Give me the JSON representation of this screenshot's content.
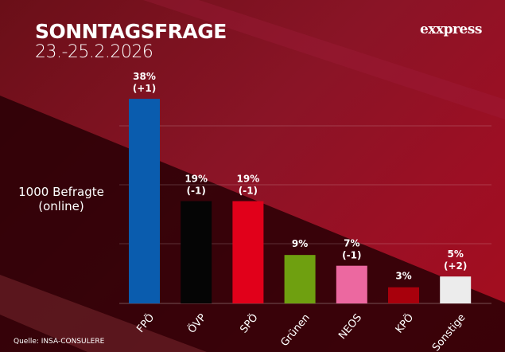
{
  "header": {
    "title": "SONNTAGSFRAGE",
    "date": "23.-25.2.2026",
    "logo": "exxpress"
  },
  "note": {
    "line1": "1000 Befragte",
    "line2": "(online)"
  },
  "source": "Quelle:  INSA-CONSULERE",
  "chart_data": {
    "type": "bar",
    "categories": [
      "FPÖ",
      "ÖVP",
      "SPÖ",
      "Grünen",
      "NEOS",
      "KPÖ",
      "Sonstige"
    ],
    "values": [
      38,
      19,
      19,
      9,
      7,
      3,
      5
    ],
    "value_labels": [
      "38%",
      "19%",
      "19%",
      "9%",
      "7%",
      "3%",
      "5%"
    ],
    "change_labels": [
      "(+1)",
      "(-1)",
      "(-1)",
      "",
      "(-1)",
      "",
      "(+2)"
    ],
    "colors": [
      "#0a5cae",
      "#050505",
      "#e1001a",
      "#6fa010",
      "#ec68a0",
      "#a8000c",
      "#ececec"
    ],
    "unit": "%",
    "grid": true,
    "legend": "none"
  }
}
